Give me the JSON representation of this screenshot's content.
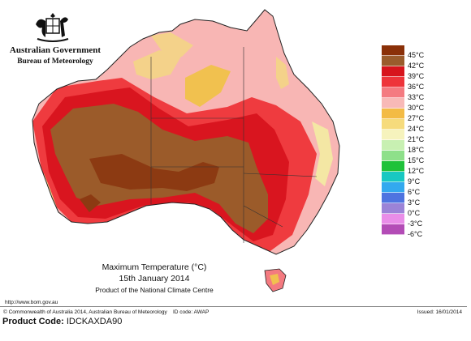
{
  "header": {
    "org_name": "Australian Government",
    "org_unit": "Bureau of Meteorology"
  },
  "crest_icon": "coat-of-arms-icon",
  "map": {
    "region": "Australia",
    "variable": "Maximum Temperature",
    "colors": {
      "c45": "#8c3a12",
      "c42": "#9b5b2a",
      "c39": "#d9151f",
      "c36": "#ef3b3f",
      "c33": "#f47a80",
      "c30": "#f7b6b3",
      "c27": "#f4d28a",
      "c24": "#f1c14f",
      "coast": "#222222"
    }
  },
  "legend": {
    "items": [
      {
        "label": "45°C",
        "color": "#8a3008"
      },
      {
        "label": "42°C",
        "color": "#9a5c2c"
      },
      {
        "label": "39°C",
        "color": "#d7141c"
      },
      {
        "label": "36°C",
        "color": "#ee343a"
      },
      {
        "label": "33°C",
        "color": "#f47b81"
      },
      {
        "label": "30°C",
        "color": "#f8b9b7"
      },
      {
        "label": "27°C",
        "color": "#f3bb45"
      },
      {
        "label": "24°C",
        "color": "#f6db7c"
      },
      {
        "label": "21°C",
        "color": "#f6f3bd"
      },
      {
        "label": "18°C",
        "color": "#c8f0b2"
      },
      {
        "label": "15°C",
        "color": "#8ee08a"
      },
      {
        "label": "12°C",
        "color": "#1fc23a"
      },
      {
        "label": "9°C",
        "color": "#18c8c2"
      },
      {
        "label": "6°C",
        "color": "#33a9ef"
      },
      {
        "label": "3°C",
        "color": "#4e74e0"
      },
      {
        "label": "0°C",
        "color": "#9b83d7"
      },
      {
        "label": "-3°C",
        "color": "#e98de8"
      },
      {
        "label": "-6°C",
        "color": "#b34cb6"
      }
    ]
  },
  "caption": {
    "title": "Maximum Temperature (°C)",
    "date": "15th January 2014",
    "product": "Product of the National Climate Centre"
  },
  "url": "http://www.bom.gov.au",
  "footer": {
    "copyright": "© Commonwealth of Australia 2014, Australian Bureau of Meteorology",
    "id_code": "ID code: AWAP",
    "issued": "Issued: 16/01/2014"
  },
  "product_code": {
    "label": "Product Code:",
    "value": "IDCKAXDA90"
  }
}
